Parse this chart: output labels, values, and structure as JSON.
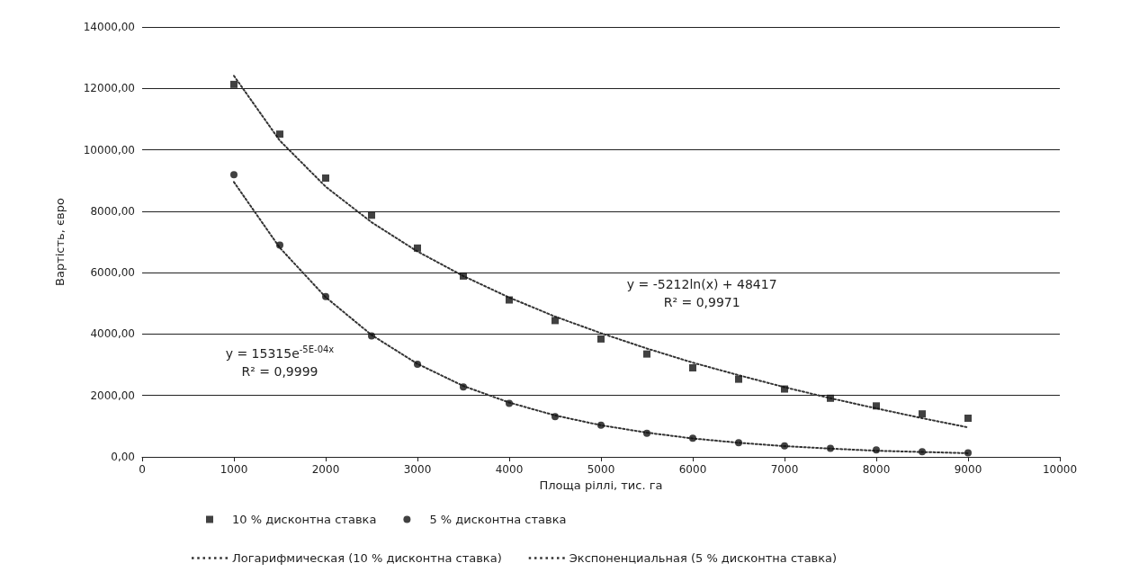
{
  "chart_data": {
    "type": "scatter",
    "xlabel": "Площа ріллі, тис. га",
    "ylabel": "Вартість, євро",
    "xlim": [
      0,
      10000
    ],
    "xticks": [
      0,
      1000,
      2000,
      3000,
      4000,
      5000,
      6000,
      7000,
      8000,
      9000,
      10000
    ],
    "ylim": [
      0,
      14000
    ],
    "yticks": [
      {
        "value": 0,
        "label": "0,00"
      },
      {
        "value": 2000,
        "label": "2000,00"
      },
      {
        "value": 4000,
        "label": "4000,00"
      },
      {
        "value": 6000,
        "label": "6000,00"
      },
      {
        "value": 8000,
        "label": "8000,00"
      },
      {
        "value": 10000,
        "label": "10000,00"
      },
      {
        "value": 12000,
        "label": "12000,00"
      },
      {
        "value": 14000,
        "label": "14000,00"
      }
    ],
    "grid": "y",
    "legend": "bottom",
    "series": [
      {
        "name": "10 % дисконтна ставка",
        "marker": "square",
        "color": "#111111",
        "x": [
          1000,
          1500,
          2000,
          2500,
          3000,
          3500,
          4000,
          4500,
          5000,
          5500,
          6000,
          6500,
          7000,
          7500,
          8000,
          8500,
          9000
        ],
        "values": [
          12130,
          10510,
          9080,
          7870,
          6800,
          5890,
          5110,
          4440,
          3840,
          3350,
          2900,
          2530,
          2210,
          1910,
          1660,
          1400,
          1260
        ]
      },
      {
        "name": "5 % дисконтна ставка",
        "marker": "circle",
        "color": "#111111",
        "x": [
          1000,
          1500,
          2000,
          2500,
          3000,
          3500,
          4000,
          4500,
          5000,
          5500,
          6000,
          6500,
          7000,
          7500,
          8000,
          8500,
          9000
        ],
        "values": [
          9190,
          6900,
          5220,
          3940,
          3020,
          2280,
          1740,
          1310,
          1030,
          770,
          610,
          460,
          360,
          280,
          230,
          170,
          130
        ]
      },
      {
        "name": "Логарифмическая (10 % дисконтна ставка)",
        "type": "line",
        "line_style": "dotted",
        "marker": "none",
        "color": "#333333",
        "x": [
          1000,
          1500,
          2000,
          2500,
          3000,
          3500,
          4000,
          4500,
          5000,
          5500,
          6000,
          6500,
          7000,
          7500,
          8000,
          8500,
          9000
        ],
        "values": [
          12410,
          10300,
          8800,
          7640,
          6690,
          5890,
          5190,
          4570,
          4030,
          3530,
          3070,
          2660,
          2270,
          1910,
          1580,
          1260,
          960
        ]
      },
      {
        "name": "Экспоненциальная (5 % дисконтна ставка)",
        "type": "line",
        "line_style": "dotted",
        "marker": "none",
        "color": "#333333",
        "x": [
          1000,
          1500,
          2000,
          2500,
          3000,
          3500,
          4000,
          4500,
          5000,
          5500,
          6000,
          6500,
          7000,
          7500,
          8000,
          8500,
          9000
        ],
        "values": [
          8950,
          6810,
          5200,
          3970,
          3030,
          2310,
          1770,
          1350,
          1030,
          790,
          600,
          460,
          350,
          270,
          200,
          160,
          120
        ]
      }
    ],
    "annotations": [
      "y = 15315e$^{-5E-04x}$\nR² = 0,9999",
      "y = -5212ln(x) + 48417\nR² = 0,9971"
    ]
  }
}
